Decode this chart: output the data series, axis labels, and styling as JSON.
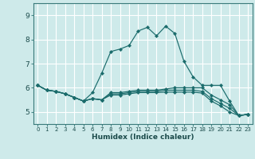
{
  "xlabel": "Humidex (Indice chaleur)",
  "background_color": "#ceeaea",
  "grid_color": "#b8d8d8",
  "line_color": "#1a6b6b",
  "ylim": [
    4.5,
    9.5
  ],
  "xlim": [
    -0.5,
    23.5
  ],
  "yticks": [
    5,
    6,
    7,
    8,
    9
  ],
  "xticks": [
    0,
    1,
    2,
    3,
    4,
    5,
    6,
    7,
    8,
    9,
    10,
    11,
    12,
    13,
    14,
    15,
    16,
    17,
    18,
    19,
    20,
    21,
    22,
    23
  ],
  "lines": [
    {
      "x": [
        0,
        1,
        2,
        3,
        4,
        5,
        6,
        7,
        8,
        9,
        10,
        11,
        12,
        13,
        14,
        15,
        16,
        17,
        18,
        19,
        20,
        21,
        22,
        23
      ],
      "y": [
        6.1,
        5.9,
        5.85,
        5.75,
        5.6,
        5.45,
        5.8,
        6.6,
        7.5,
        7.6,
        7.75,
        8.35,
        8.5,
        8.15,
        8.55,
        8.25,
        7.1,
        6.45,
        6.1,
        6.1,
        6.1,
        5.45,
        4.85,
        4.9
      ]
    },
    {
      "x": [
        0,
        1,
        2,
        3,
        4,
        5,
        6,
        7,
        8,
        9,
        10,
        11,
        12,
        13,
        14,
        15,
        16,
        17,
        18,
        19,
        20,
        21,
        22,
        23
      ],
      "y": [
        6.1,
        5.9,
        5.85,
        5.75,
        5.6,
        5.45,
        5.55,
        5.5,
        5.8,
        5.8,
        5.85,
        5.9,
        5.9,
        5.9,
        5.95,
        6.0,
        6.0,
        6.0,
        6.0,
        5.7,
        5.5,
        5.3,
        4.85,
        4.9
      ]
    },
    {
      "x": [
        0,
        1,
        2,
        3,
        4,
        5,
        6,
        7,
        8,
        9,
        10,
        11,
        12,
        13,
        14,
        15,
        16,
        17,
        18,
        19,
        20,
        21,
        22,
        23
      ],
      "y": [
        6.1,
        5.9,
        5.85,
        5.75,
        5.6,
        5.45,
        5.55,
        5.5,
        5.75,
        5.75,
        5.8,
        5.85,
        5.85,
        5.85,
        5.9,
        5.9,
        5.9,
        5.9,
        5.85,
        5.55,
        5.35,
        5.15,
        4.85,
        4.9
      ]
    },
    {
      "x": [
        0,
        1,
        2,
        3,
        4,
        5,
        6,
        7,
        8,
        9,
        10,
        11,
        12,
        13,
        14,
        15,
        16,
        17,
        18,
        19,
        20,
        21,
        22,
        23
      ],
      "y": [
        6.1,
        5.9,
        5.85,
        5.75,
        5.6,
        5.45,
        5.55,
        5.5,
        5.7,
        5.7,
        5.75,
        5.8,
        5.8,
        5.8,
        5.82,
        5.82,
        5.82,
        5.82,
        5.78,
        5.45,
        5.25,
        5.0,
        4.85,
        4.9
      ]
    }
  ]
}
